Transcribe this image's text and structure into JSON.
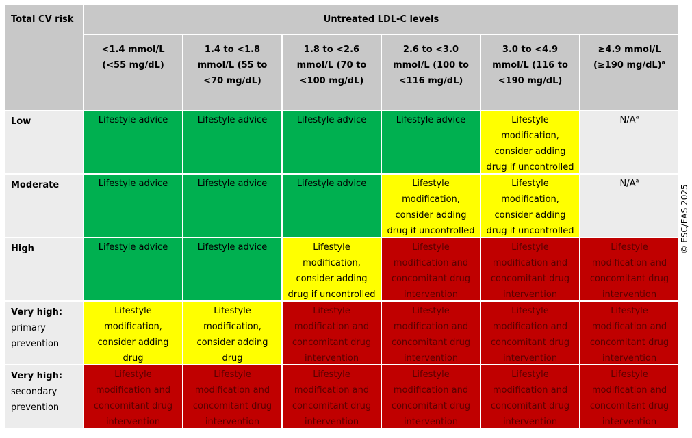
{
  "corner_label": "Total CV risk",
  "top_header": "Untreated LDL-C levels",
  "columns": [
    {
      "label": "<1.4 mmol/L (<55 mg/dL)",
      "sup": ""
    },
    {
      "label": "1.4 to <1.8 mmol/L (55 to <70 mg/dL)",
      "sup": ""
    },
    {
      "label": "1.8 to <2.6 mmol/L (70 to <100 mg/dL)",
      "sup": ""
    },
    {
      "label": "2.6 to <3.0 mmol/L (100 to <116 mg/dL)",
      "sup": ""
    },
    {
      "label": "3.0 to <4.9 mmol/L (116 to <190 mg/dL)",
      "sup": ""
    },
    {
      "label": "≥4.9 mmol/L (≥190 mg/dL)",
      "sup": "a"
    }
  ],
  "rows": [
    {
      "label": "Low",
      "sub": "",
      "cells": [
        {
          "text": "Lifestyle advice",
          "color": "green",
          "sup": ""
        },
        {
          "text": "Lifestyle advice",
          "color": "green",
          "sup": ""
        },
        {
          "text": "Lifestyle advice",
          "color": "green",
          "sup": ""
        },
        {
          "text": "Lifestyle advice",
          "color": "green",
          "sup": ""
        },
        {
          "text": "Lifestyle modification, consider adding drug if uncontrolled",
          "color": "yellow",
          "sup": ""
        },
        {
          "text": "N/A",
          "color": "na",
          "sup": "a"
        }
      ]
    },
    {
      "label": "Moderate",
      "sub": "",
      "cells": [
        {
          "text": "Lifestyle advice",
          "color": "green",
          "sup": ""
        },
        {
          "text": "Lifestyle advice",
          "color": "green",
          "sup": ""
        },
        {
          "text": "Lifestyle advice",
          "color": "green",
          "sup": ""
        },
        {
          "text": "Lifestyle modification, consider adding drug if uncontrolled",
          "color": "yellow",
          "sup": ""
        },
        {
          "text": "Lifestyle modification, consider adding drug if uncontrolled",
          "color": "yellow",
          "sup": ""
        },
        {
          "text": "N/A",
          "color": "na",
          "sup": "a"
        }
      ]
    },
    {
      "label": "High",
      "sub": "",
      "cells": [
        {
          "text": "Lifestyle advice",
          "color": "green",
          "sup": ""
        },
        {
          "text": "Lifestyle advice",
          "color": "green",
          "sup": ""
        },
        {
          "text": "Lifestyle modification, consider adding drug if uncontrolled",
          "color": "yellow",
          "sup": ""
        },
        {
          "text": "Lifestyle modification and concomitant drug intervention",
          "color": "red",
          "sup": ""
        },
        {
          "text": "Lifestyle modification and concomitant drug intervention",
          "color": "red",
          "sup": ""
        },
        {
          "text": "Lifestyle modification and concomitant drug intervention",
          "color": "red",
          "sup": ""
        }
      ]
    },
    {
      "label": "Very high:",
      "sub": "primary prevention",
      "cells": [
        {
          "text": "Lifestyle modification, consider adding drug",
          "color": "yellow",
          "sup": ""
        },
        {
          "text": "Lifestyle modification, consider adding drug",
          "color": "yellow",
          "sup": ""
        },
        {
          "text": "Lifestyle modification and concomitant drug intervention",
          "color": "red",
          "sup": ""
        },
        {
          "text": "Lifestyle modification and concomitant drug intervention",
          "color": "red",
          "sup": ""
        },
        {
          "text": "Lifestyle modification and concomitant drug intervention",
          "color": "red",
          "sup": ""
        },
        {
          "text": "Lifestyle modification and concomitant drug intervention",
          "color": "red",
          "sup": ""
        }
      ]
    },
    {
      "label": "Very high:",
      "sub": "secondary prevention",
      "cells": [
        {
          "text": "Lifestyle modification and concomitant drug intervention",
          "color": "red",
          "sup": ""
        },
        {
          "text": "Lifestyle modification and concomitant drug intervention",
          "color": "red",
          "sup": ""
        },
        {
          "text": "Lifestyle modification and concomitant drug intervention",
          "color": "red",
          "sup": ""
        },
        {
          "text": "Lifestyle modification and concomitant drug intervention",
          "color": "red",
          "sup": ""
        },
        {
          "text": "Lifestyle modification and concomitant drug intervention",
          "color": "red",
          "sup": ""
        },
        {
          "text": "Lifestyle modification and concomitant drug intervention",
          "color": "red",
          "sup": ""
        }
      ]
    }
  ],
  "copyright": "© ESC/EAS 2025",
  "colors": {
    "green": "#00b050",
    "yellow": "#ffff00",
    "red": "#c00000",
    "header": "#c8c8c8",
    "row_header": "#ececec"
  }
}
